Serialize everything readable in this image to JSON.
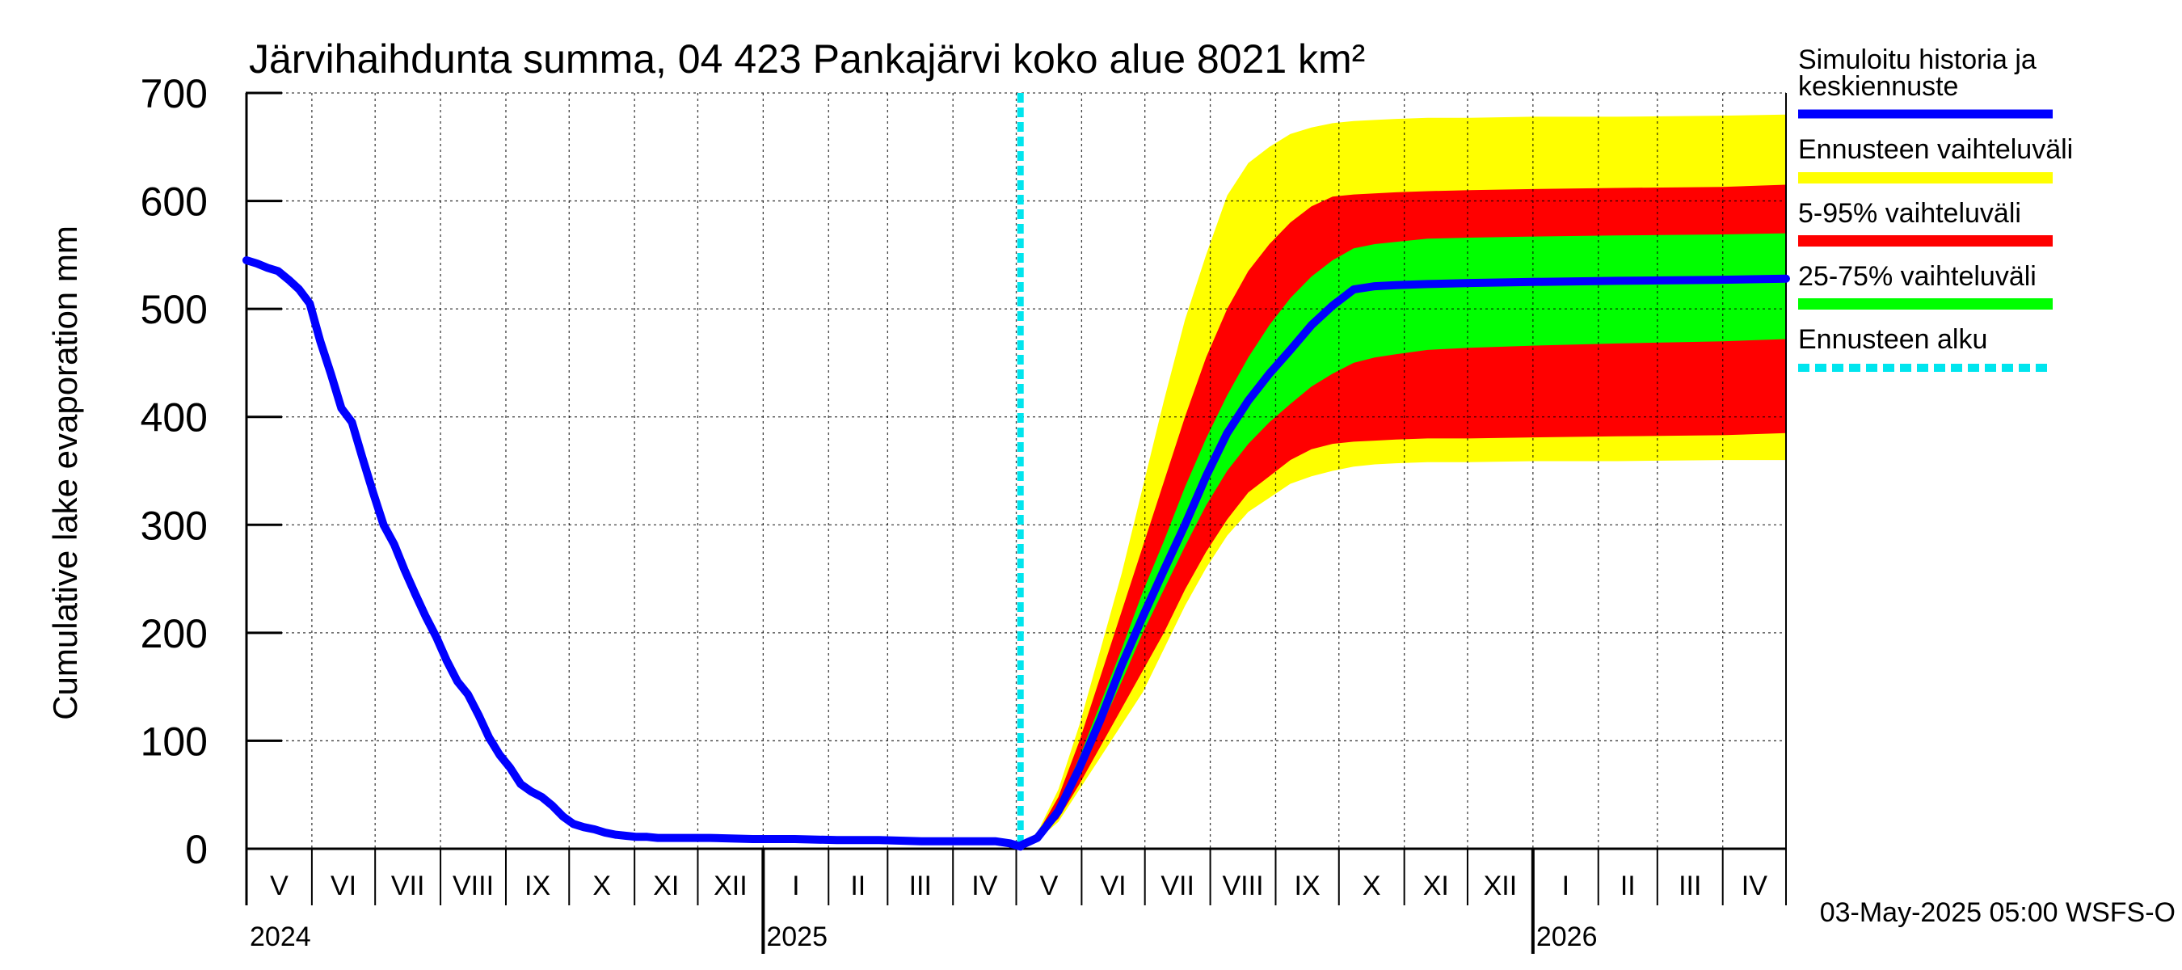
{
  "chart_data": {
    "type": "area",
    "title": "Järvihaihdunta summa, 04 423 Pankajärvi koko alue 8021 km²",
    "ylabel": "Cumulative lake evaporation   mm",
    "ylim": [
      0,
      700
    ],
    "yticks": [
      0,
      100,
      200,
      300,
      400,
      500,
      600,
      700
    ],
    "x_range_days": [
      0,
      730
    ],
    "months": [
      {
        "label": "V",
        "start": 0
      },
      {
        "label": "VI",
        "start": 31
      },
      {
        "label": "VII",
        "start": 61
      },
      {
        "label": "VIII",
        "start": 92
      },
      {
        "label": "IX",
        "start": 123
      },
      {
        "label": "X",
        "start": 153
      },
      {
        "label": "XI",
        "start": 184
      },
      {
        "label": "XII",
        "start": 214
      },
      {
        "label": "I",
        "start": 245
      },
      {
        "label": "II",
        "start": 276
      },
      {
        "label": "III",
        "start": 304
      },
      {
        "label": "IV",
        "start": 335
      },
      {
        "label": "V",
        "start": 365
      },
      {
        "label": "VI",
        "start": 396
      },
      {
        "label": "VII",
        "start": 426
      },
      {
        "label": "VIII",
        "start": 457
      },
      {
        "label": "IX",
        "start": 488
      },
      {
        "label": "X",
        "start": 518
      },
      {
        "label": "XI",
        "start": 549
      },
      {
        "label": "XII",
        "start": 579
      },
      {
        "label": "I",
        "start": 610
      },
      {
        "label": "II",
        "start": 641
      },
      {
        "label": "III",
        "start": 669
      },
      {
        "label": "IV",
        "start": 700
      }
    ],
    "years": [
      {
        "label": "2024",
        "day": 0
      },
      {
        "label": "2025",
        "day": 245
      },
      {
        "label": "2026",
        "day": 610
      }
    ],
    "year_boundaries": [
      245,
      610
    ],
    "forecast_start_day": 367,
    "history": {
      "name": "Simuloitu historia ja keskiennuste",
      "color": "#0000ff",
      "x": [
        0,
        5,
        10,
        15,
        20,
        25,
        30,
        35,
        40,
        45,
        50,
        55,
        60,
        65,
        70,
        75,
        80,
        85,
        90,
        95,
        100,
        105,
        110,
        115,
        120,
        125,
        130,
        135,
        140,
        145,
        150,
        155,
        160,
        165,
        170,
        175,
        180,
        185,
        190,
        195,
        200,
        205,
        210,
        220,
        240,
        260,
        280,
        300,
        320,
        340,
        355,
        362,
        367
      ],
      "y": [
        545,
        542,
        538,
        535,
        527,
        518,
        505,
        470,
        440,
        408,
        395,
        362,
        330,
        300,
        282,
        258,
        236,
        215,
        196,
        174,
        155,
        143,
        124,
        103,
        87,
        75,
        60,
        53,
        48,
        40,
        30,
        23,
        20,
        18,
        15,
        13,
        12,
        11,
        11,
        10,
        10,
        10,
        10,
        10,
        9,
        9,
        8,
        8,
        7,
        7,
        7,
        5,
        2
      ]
    },
    "mean_forecast": {
      "name": "Simuloitu historia ja keskiennuste",
      "color": "#0000ff",
      "x": [
        367,
        375,
        385,
        395,
        405,
        415,
        425,
        435,
        445,
        455,
        465,
        475,
        485,
        495,
        505,
        515,
        525,
        535,
        545,
        560,
        580,
        610,
        650,
        700,
        730
      ],
      "y": [
        3,
        10,
        35,
        75,
        120,
        170,
        215,
        258,
        300,
        345,
        385,
        415,
        440,
        462,
        485,
        503,
        518,
        521,
        522,
        523,
        524,
        525,
        526,
        527,
        528
      ]
    },
    "band_x": [
      367,
      375,
      385,
      395,
      405,
      415,
      425,
      435,
      445,
      455,
      465,
      475,
      485,
      495,
      505,
      515,
      525,
      535,
      545,
      560,
      580,
      610,
      650,
      700,
      730
    ],
    "bands": [
      {
        "name": "Ennusteen vaihteluväli",
        "color": "#ffff00",
        "lower": [
          2,
          8,
          25,
          55,
          85,
          115,
          145,
          185,
          225,
          260,
          290,
          312,
          325,
          338,
          345,
          350,
          354,
          356,
          357,
          358,
          358,
          359,
          359,
          360,
          360
        ],
        "upper": [
          4,
          15,
          55,
          115,
          185,
          255,
          335,
          415,
          490,
          550,
          605,
          635,
          650,
          662,
          668,
          672,
          674,
          675,
          676,
          677,
          677,
          678,
          678,
          679,
          680
        ]
      },
      {
        "name": "5-95% vaihteluväli",
        "color": "#ff0000",
        "lower": [
          2,
          9,
          28,
          60,
          95,
          130,
          165,
          200,
          240,
          275,
          305,
          330,
          345,
          360,
          370,
          375,
          377,
          378,
          379,
          380,
          380,
          381,
          382,
          383,
          385
        ],
        "upper": [
          4,
          14,
          48,
          100,
          160,
          220,
          280,
          340,
          400,
          455,
          500,
          535,
          560,
          580,
          595,
          604,
          606,
          607,
          608,
          609,
          610,
          611,
          612,
          613,
          615
        ]
      },
      {
        "name": "25-75% vaihteluväli",
        "color": "#00ff00",
        "lower": [
          3,
          10,
          33,
          70,
          112,
          155,
          200,
          240,
          280,
          318,
          350,
          375,
          395,
          412,
          428,
          440,
          450,
          455,
          458,
          462,
          464,
          466,
          468,
          470,
          472
        ],
        "upper": [
          3,
          11,
          40,
          85,
          135,
          185,
          238,
          285,
          335,
          380,
          420,
          455,
          485,
          510,
          530,
          545,
          556,
          560,
          562,
          565,
          566,
          567,
          568,
          569,
          570
        ]
      }
    ],
    "legend_position": "right"
  },
  "legend": {
    "history_label_1": "Simuloitu historia ja",
    "history_label_2": "keskiennuste",
    "range_label": "Ennusteen vaihteluväli",
    "p5_95_label": "5-95% vaihteluväli",
    "p25_75_label": "25-75% vaihteluväli",
    "forecast_start_label": "Ennusteen alku"
  },
  "footer": {
    "timestamp": "03-May-2025 05:00 WSFS-O"
  },
  "colors": {
    "history": "#0000ff",
    "forecast_start": "#00e5ee",
    "range": "#ffff00",
    "p5_95": "#ff0000",
    "p25_75": "#00ff00"
  }
}
